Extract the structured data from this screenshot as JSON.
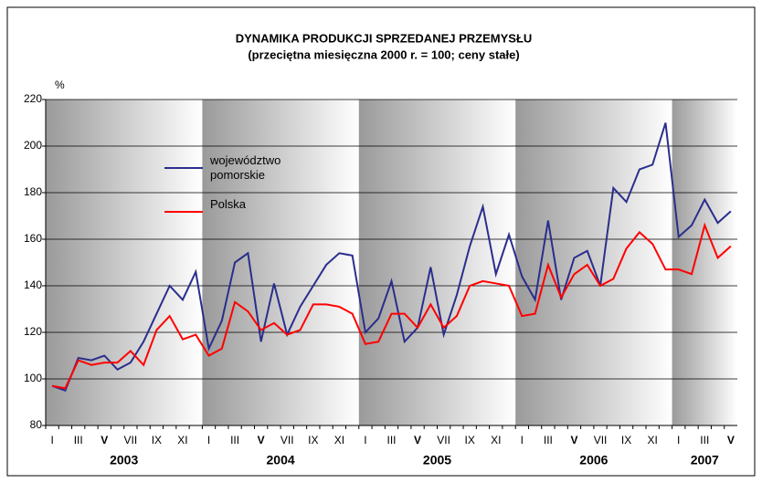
{
  "chart_data": {
    "type": "line",
    "title": "DYNAMIKA PRODUKCJI SPRZEDANEJ PRZEMYSŁU",
    "subtitle": "(przeciętna miesięczna 2000 r. = 100; ceny stałe)",
    "y_label": "%",
    "categories": [
      "I",
      null,
      "III",
      null,
      "V",
      null,
      "VII",
      null,
      "IX",
      null,
      "XI",
      null,
      "I",
      null,
      "III",
      null,
      "V",
      null,
      "VII",
      null,
      "IX",
      null,
      "XI",
      null,
      "I",
      null,
      "III",
      null,
      "V",
      null,
      "VII",
      null,
      "IX",
      null,
      "XI",
      null,
      "I",
      null,
      "III",
      null,
      "V",
      null,
      "VII",
      null,
      "IX",
      null,
      "XI",
      null,
      "I",
      null,
      "III",
      null,
      "V"
    ],
    "years": [
      "2003",
      "2004",
      "2005",
      "2006",
      "2007"
    ],
    "series": [
      {
        "name": "województwo pomorskie",
        "color": "#2a2e8c",
        "values": [
          97,
          95,
          109,
          108,
          110,
          104,
          107,
          116,
          128,
          140,
          134,
          146,
          113,
          125,
          150,
          154,
          116,
          141,
          119,
          131,
          140,
          149,
          154,
          153,
          120,
          126,
          142,
          116,
          122,
          148,
          119,
          136,
          157,
          174,
          145,
          162,
          144,
          134,
          168,
          134,
          152,
          155,
          140,
          182,
          176,
          190,
          192,
          210,
          161,
          166,
          177,
          167,
          172
        ]
      },
      {
        "name": "Polska",
        "color": "#ff0000",
        "values": [
          97,
          96,
          108,
          106,
          107,
          107,
          112,
          106,
          121,
          127,
          117,
          119,
          110,
          113,
          133,
          129,
          121,
          124,
          119,
          121,
          132,
          132,
          131,
          128,
          115,
          116,
          128,
          128,
          122,
          132,
          122,
          127,
          140,
          142,
          141,
          140,
          127,
          128,
          149,
          135,
          145,
          149,
          140,
          143,
          156,
          163,
          158,
          147,
          147,
          145,
          166,
          152,
          157
        ]
      }
    ],
    "ylim": [
      80,
      220
    ],
    "yticks": [
      80,
      100,
      120,
      140,
      160,
      180,
      200,
      220
    ],
    "grid": true,
    "legend": "upper-left"
  }
}
